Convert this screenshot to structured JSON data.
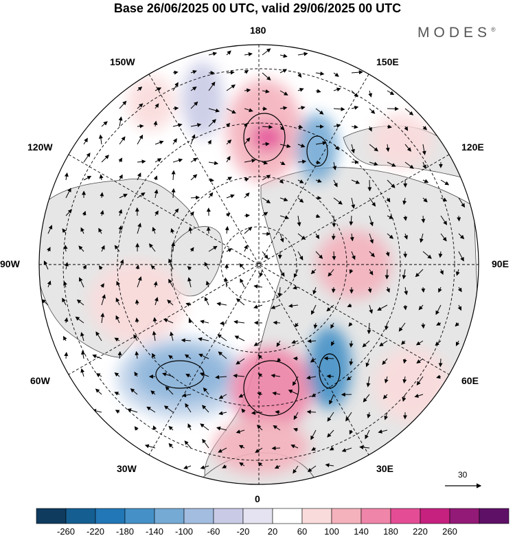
{
  "title": "Base 26/06/2025 00 UTC, valid 29/06/2025 00 UTC",
  "brand": "MODES",
  "brand_mark": "®",
  "longitude_labels": [
    "180",
    "150E",
    "120E",
    "90E",
    "60E",
    "30E",
    "0",
    "30W",
    "60W",
    "90W",
    "120W",
    "150W"
  ],
  "reference_vector": "30",
  "colorbar": {
    "labels": [
      "-260",
      "-220",
      "-180",
      "-140",
      "-100",
      "-60",
      "-20",
      "20",
      "60",
      "100",
      "140",
      "180",
      "220",
      "260"
    ],
    "colors": [
      "#0e3b5e",
      "#145e92",
      "#2277b6",
      "#4591c7",
      "#75aad5",
      "#a3bde0",
      "#c9cbe6",
      "#e5e3f1",
      "#ffffff",
      "#fadbdc",
      "#f4b2bd",
      "#ef85a8",
      "#e44d96",
      "#c6217f",
      "#931a77",
      "#5e1067"
    ]
  },
  "map": {
    "projection": "north-polar-stereographic",
    "land_color": "#e6e6e6",
    "coastline_color": "#444444"
  }
}
